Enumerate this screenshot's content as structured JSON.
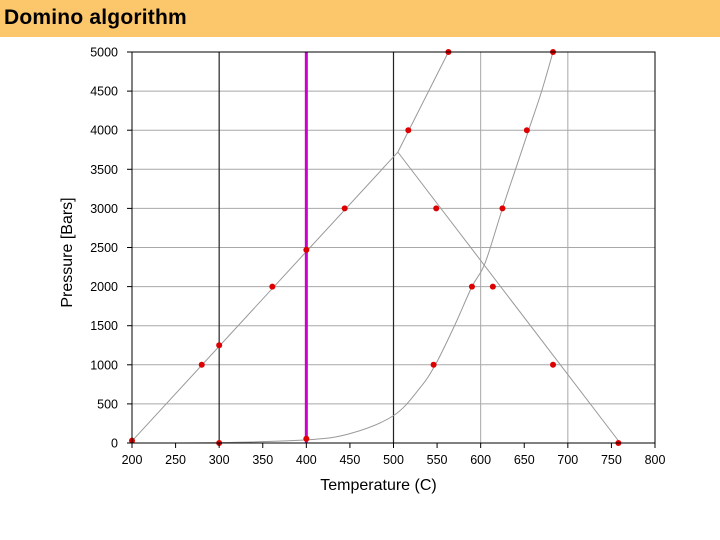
{
  "slide": {
    "title": "Domino algorithm",
    "header_color": "#fcc66a"
  },
  "chart_data": {
    "type": "line",
    "title": "",
    "xlabel": "Temperature (C)",
    "ylabel": "Pressure [Bars]",
    "xlim": [
      200,
      800
    ],
    "ylim": [
      0,
      5000
    ],
    "x_ticks": [
      "200",
      "250",
      "300",
      "350",
      "400",
      "450",
      "500",
      "550",
      "600",
      "650",
      "700",
      "750",
      "800"
    ],
    "y_ticks": [
      "0",
      "500",
      "1000",
      "1500",
      "2000",
      "2500",
      "3000",
      "3500",
      "4000",
      "4500",
      "5000"
    ],
    "grid": true,
    "curves": [
      {
        "x": [
          200,
          505,
          760
        ],
        "y": [
          25,
          3720,
          0
        ],
        "color": "#999999"
      },
      {
        "x": [
          505,
          563
        ],
        "y": [
          3720,
          5000
        ],
        "color": "#999999"
      },
      {
        "x": [
          200,
          300,
          400,
          450,
          500,
          530,
          548,
          570,
          590,
          605,
          625,
          640,
          655,
          670,
          683
        ],
        "y": [
          0,
          5,
          40,
          120,
          350,
          700,
          1000,
          1500,
          2000,
          2300,
          3000,
          3500,
          4000,
          4500,
          5000
        ],
        "color": "#999999"
      }
    ],
    "highlight_vertical": {
      "x": 400,
      "color": "#cc00cc"
    },
    "dark_vertical_lines": [
      300,
      500
    ],
    "points_color": "#dd0000",
    "points": [
      {
        "x": 200,
        "y": 30
      },
      {
        "x": 300,
        "y": 0
      },
      {
        "x": 400,
        "y": 55
      },
      {
        "x": 280,
        "y": 1000
      },
      {
        "x": 300,
        "y": 1250
      },
      {
        "x": 361,
        "y": 2000
      },
      {
        "x": 400,
        "y": 2470
      },
      {
        "x": 444,
        "y": 3000
      },
      {
        "x": 517,
        "y": 4000
      },
      {
        "x": 563,
        "y": 5000
      },
      {
        "x": 549,
        "y": 3000
      },
      {
        "x": 590,
        "y": 2000
      },
      {
        "x": 614,
        "y": 2000
      },
      {
        "x": 546,
        "y": 1000
      },
      {
        "x": 683,
        "y": 1000
      },
      {
        "x": 758,
        "y": 0
      },
      {
        "x": 625,
        "y": 3000
      },
      {
        "x": 653,
        "y": 4000
      },
      {
        "x": 683,
        "y": 5000
      }
    ]
  }
}
